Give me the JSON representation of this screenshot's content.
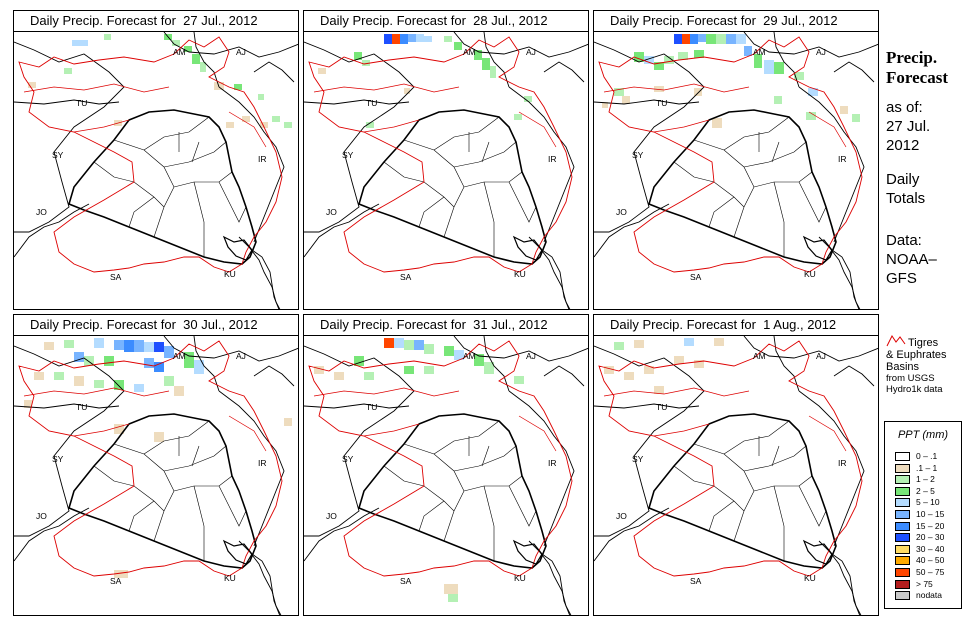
{
  "panels": [
    {
      "title": "Daily Precip. Forecast for  27 Jul., 2012"
    },
    {
      "title": "Daily Precip. Forecast for  28 Jul., 2012"
    },
    {
      "title": "Daily Precip. Forecast for  29 Jul., 2012"
    },
    {
      "title": "Daily Precip. Forecast for  30 Jul., 2012"
    },
    {
      "title": "Daily Precip. Forecast for  31 Jul., 2012"
    },
    {
      "title": "Daily Precip. Forecast for  1 Aug., 2012"
    }
  ],
  "country_labels": {
    "am": "AM",
    "aj": "AJ",
    "tu": "TU",
    "sy": "SY",
    "ir": "IR",
    "jo": "JO",
    "sa": "SA",
    "ku": "KU"
  },
  "side": {
    "title_line1": "Precip.",
    "title_line2": "Forecast",
    "asof": "as of:",
    "date_line1": "27 Jul.",
    "date_line2": "2012",
    "totals_line1": "Daily",
    "totals_line2": "Totals",
    "data_line1": "Data:",
    "data_line2": "NOAA–",
    "data_line3": "GFS"
  },
  "basin_note": {
    "line1": "Tigres",
    "line2": "& Euphrates",
    "line3": "Basins",
    "line4": "from USGS",
    "line5": "Hydro1k data"
  },
  "legend": {
    "title": "PPT (mm)",
    "items": [
      {
        "label": "0 – .1",
        "color": "#ffffff"
      },
      {
        "label": ".1 – 1",
        "color": "#eedcbe"
      },
      {
        "label": "1 – 2",
        "color": "#b4f0b4"
      },
      {
        "label": "2 – 5",
        "color": "#78e678"
      },
      {
        "label": "5 – 10",
        "color": "#b4dcff"
      },
      {
        "label": "10 – 15",
        "color": "#78b4ff"
      },
      {
        "label": "15 – 20",
        "color": "#3c8cff"
      },
      {
        "label": "20 – 30",
        "color": "#1e50ff"
      },
      {
        "label": "30 – 40",
        "color": "#ffdc64"
      },
      {
        "label": "40 – 50",
        "color": "#ffaa00"
      },
      {
        "label": "50 – 75",
        "color": "#ff4600"
      },
      {
        "label": "> 75",
        "color": "#b41e1e"
      },
      {
        "label": "nodata",
        "color": "#c8c8c8"
      }
    ]
  }
}
